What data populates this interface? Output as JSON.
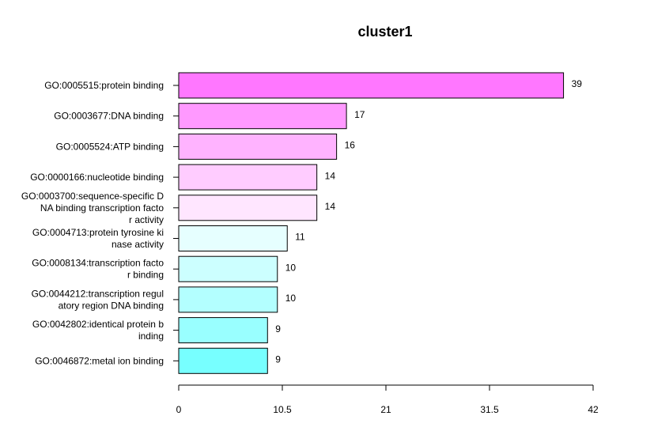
{
  "chart_data": {
    "type": "bar",
    "orientation": "horizontal",
    "title": "cluster1",
    "xlabel": "",
    "ylabel": "",
    "xlim": [
      0,
      42
    ],
    "xticks": [
      "0",
      "10.5",
      "21",
      "31.5",
      "42"
    ],
    "grid": false,
    "legend": "none",
    "categories": [
      "GO:0005515:protein binding",
      "GO:0003677:DNA binding",
      "GO:0005524:ATP binding",
      "GO:0000166:nucleotide binding",
      "GO:0003700:sequence-specific DNA binding transcription factor activity",
      "GO:0004713:protein tyrosine kinase activity",
      "GO:0008134:transcription factor binding",
      "GO:0044212:transcription regulatory region DNA binding",
      "GO:0042802:identical protein binding",
      "GO:0046872:metal ion binding"
    ],
    "category_display_lines": [
      [
        "GO:0005515:protein binding"
      ],
      [
        "GO:0003677:DNA binding"
      ],
      [
        "GO:0005524:ATP binding"
      ],
      [
        "GO:0000166:nucleotide binding"
      ],
      [
        "GO:0003700:sequence-specific D",
        "NA binding transcription facto",
        "r activity"
      ],
      [
        "GO:0004713:protein tyrosine ki",
        "nase activity"
      ],
      [
        "GO:0008134:transcription facto",
        "r binding"
      ],
      [
        "GO:0044212:transcription regul",
        "atory region DNA binding"
      ],
      [
        "GO:0042802:identical protein b",
        "inding"
      ],
      [
        "GO:0046872:metal ion binding"
      ]
    ],
    "values": [
      39,
      17,
      16,
      14,
      14,
      11,
      10,
      10,
      9,
      9
    ],
    "value_labels": [
      "39",
      "17",
      "16",
      "14",
      "14",
      "11",
      "10",
      "10",
      "9",
      "9"
    ],
    "colors": [
      "#ff77ff",
      "#ff99ff",
      "#ffb3ff",
      "#ffccff",
      "#ffe6ff",
      "#e6ffff",
      "#ccffff",
      "#b3ffff",
      "#99ffff",
      "#77ffff"
    ],
    "bar_border_color": "#000000"
  }
}
